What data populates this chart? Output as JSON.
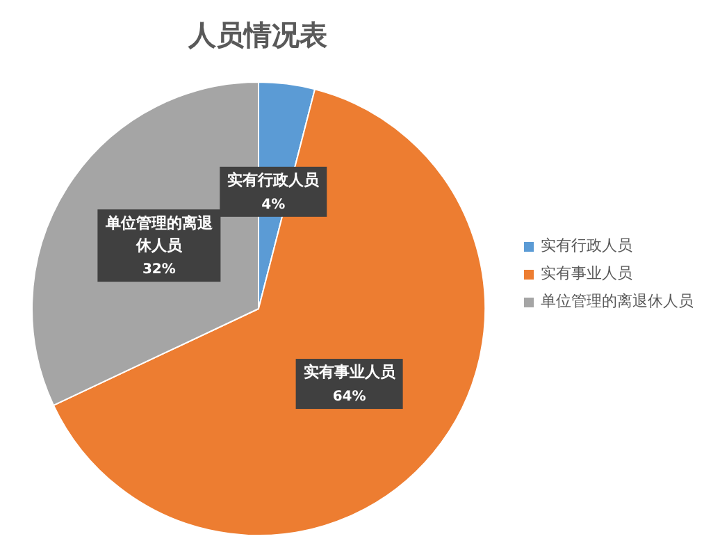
{
  "chart_data": {
    "type": "pie",
    "title": "人员情况表",
    "categories": [
      "实有行政人员",
      "实有事业人员",
      "单位管理的离退休人员"
    ],
    "values": [
      4,
      64,
      32
    ],
    "colors": [
      "#5b9bd5",
      "#ed7d31",
      "#a5a5a5"
    ],
    "value_labels": [
      "4%",
      "64%",
      "32%"
    ],
    "legend": "right"
  }
}
